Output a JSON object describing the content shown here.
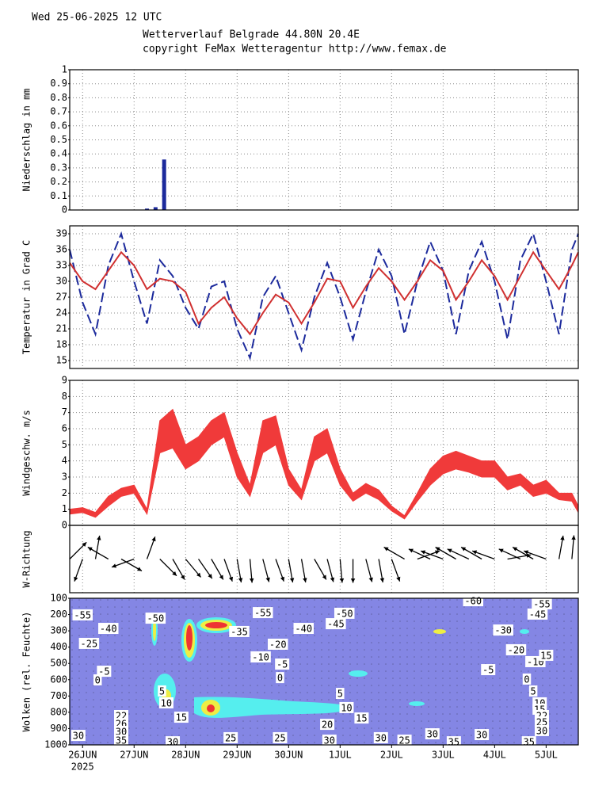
{
  "header": {
    "date": "Wed 25-06-2025 12 UTC",
    "location": "Wetterverlauf Belgrade  44.80N 20.4E",
    "copyright": "copyright FeMax Wetteragentur http://www.femax.de"
  },
  "chart_data": [
    {
      "type": "bar",
      "ylabel": "Niederschlag in mm",
      "xlim": [
        0,
        237
      ],
      "ylim": [
        0,
        1
      ],
      "yticks": [
        0,
        0.1,
        0.2,
        0.3,
        0.4,
        0.5,
        0.6,
        0.7,
        0.8,
        0.9,
        1
      ],
      "grid": true,
      "color": "#1c2a9c",
      "x": [
        36,
        40,
        44
      ],
      "values": [
        0.01,
        0.02,
        0.36
      ]
    },
    {
      "type": "line",
      "ylabel": "Temperatur in Grad C",
      "xlim": [
        0,
        237
      ],
      "ylim": [
        13.5,
        40.5
      ],
      "yticks": [
        15,
        18,
        21,
        24,
        27,
        30,
        33,
        36,
        39
      ],
      "grid": true,
      "x": [
        0,
        6,
        12,
        18,
        24,
        30,
        36,
        42,
        48,
        54,
        60,
        66,
        72,
        78,
        84,
        90,
        96,
        102,
        108,
        114,
        120,
        126,
        132,
        138,
        144,
        150,
        156,
        162,
        168,
        174,
        180,
        186,
        192,
        198,
        204,
        210,
        216,
        222,
        228,
        234,
        237
      ],
      "series": [
        {
          "color": "#1c2a9c",
          "style": "dashed",
          "values": [
            36,
            26,
            20,
            33,
            39,
            30,
            22,
            34,
            31,
            25,
            21,
            29,
            30,
            21,
            15.5,
            27,
            31,
            24,
            17,
            27,
            33.5,
            27,
            19,
            28,
            36,
            31,
            20,
            30,
            37.5,
            32,
            20,
            32,
            37.5,
            30,
            19,
            34,
            39,
            30,
            20,
            36,
            39
          ]
        },
        {
          "color": "#d03030",
          "style": "solid",
          "values": [
            33.5,
            30,
            28.5,
            32,
            35.5,
            33,
            28.5,
            30.5,
            30,
            28,
            22,
            25,
            27,
            23,
            20,
            24,
            27.5,
            26,
            22,
            26,
            30.5,
            30,
            25,
            29,
            32.5,
            30,
            26.5,
            30,
            34,
            32,
            26.5,
            30,
            34,
            31,
            26.5,
            31,
            35.5,
            32,
            28.5,
            33,
            35.5
          ]
        }
      ]
    },
    {
      "type": "band",
      "ylabel": "Windgeschw. m/s",
      "xlim": [
        0,
        237
      ],
      "ylim": [
        0,
        9
      ],
      "yticks": [
        0,
        1,
        2,
        3,
        4,
        5,
        6,
        7,
        8,
        9
      ],
      "grid": true,
      "color": "#f03a3a",
      "x": [
        0,
        6,
        12,
        18,
        24,
        30,
        36,
        42,
        48,
        54,
        60,
        66,
        72,
        78,
        84,
        90,
        96,
        102,
        108,
        114,
        120,
        126,
        132,
        138,
        144,
        150,
        156,
        162,
        168,
        174,
        180,
        186,
        192,
        198,
        204,
        210,
        216,
        222,
        228,
        234,
        237
      ],
      "lower": [
        0.7,
        0.8,
        0.5,
        1.2,
        1.8,
        2.0,
        0.7,
        4.5,
        4.8,
        3.5,
        4.0,
        5.0,
        5.5,
        3.0,
        1.8,
        4.5,
        5.0,
        2.5,
        1.6,
        4.0,
        4.5,
        2.5,
        1.5,
        2.0,
        1.6,
        0.9,
        0.4,
        1.5,
        2.5,
        3.2,
        3.5,
        3.3,
        3.0,
        3.0,
        2.2,
        2.5,
        1.8,
        2.0,
        1.6,
        1.5,
        0.8
      ],
      "upper": [
        1.0,
        1.1,
        0.8,
        1.8,
        2.3,
        2.5,
        1.0,
        6.5,
        7.2,
        5.0,
        5.5,
        6.5,
        7.0,
        4.5,
        2.5,
        6.5,
        6.8,
        3.5,
        2.2,
        5.5,
        6.0,
        3.5,
        2.0,
        2.6,
        2.2,
        1.2,
        0.6,
        2.0,
        3.5,
        4.3,
        4.6,
        4.3,
        4.0,
        4.0,
        3.0,
        3.2,
        2.5,
        2.8,
        2.0,
        2.0,
        1.2
      ]
    },
    {
      "type": "arrows",
      "ylabel": "W-Richtung",
      "xlim": [
        0,
        237
      ],
      "color": "#000000",
      "x": [
        0,
        6,
        12,
        18,
        24,
        30,
        36,
        42,
        48,
        54,
        60,
        66,
        72,
        78,
        84,
        90,
        96,
        102,
        108,
        114,
        120,
        126,
        132,
        138,
        144,
        150,
        156,
        162,
        168,
        174,
        180,
        186,
        192,
        198,
        204,
        210,
        216,
        222,
        228,
        234
      ],
      "values": [
        45,
        200,
        10,
        300,
        120,
        250,
        20,
        135,
        150,
        140,
        145,
        150,
        160,
        170,
        175,
        165,
        160,
        170,
        170,
        150,
        165,
        175,
        180,
        165,
        170,
        160,
        300,
        70,
        295,
        290,
        300,
        295,
        300,
        290,
        80,
        295,
        300,
        290,
        10,
        5
      ]
    },
    {
      "type": "contour",
      "ylabel": "Wolken (rel. Feuchte)",
      "xlim": [
        0,
        237
      ],
      "ylim": [
        100,
        1000
      ],
      "inverted": true,
      "yticks": [
        100,
        200,
        300,
        400,
        500,
        600,
        700,
        800,
        900,
        1000
      ],
      "color": "#8486e4",
      "year": "2025",
      "xticks": [
        {
          "value": 6,
          "label": "26JUN"
        },
        {
          "value": 30,
          "label": "27JUN"
        },
        {
          "value": 54,
          "label": "28JUN"
        },
        {
          "value": 78,
          "label": "29JUN"
        },
        {
          "value": 102,
          "label": "30JUN"
        },
        {
          "value": 126,
          "label": "1JUL"
        },
        {
          "value": 150,
          "label": "2JUL"
        },
        {
          "value": 174,
          "label": "3JUL"
        },
        {
          "value": 198,
          "label": "4JUL"
        },
        {
          "value": 222,
          "label": "5JUL"
        }
      ],
      "labels": {
        "x": [
          6,
          18,
          9,
          16,
          13,
          4,
          24,
          24,
          24,
          24,
          40,
          43,
          45,
          52,
          48,
          90,
          79,
          97,
          89,
          99,
          98,
          109,
          128,
          124,
          75,
          98,
          126,
          129,
          136,
          120,
          121,
          145,
          156,
          169,
          192,
          179,
          188,
          220,
          218,
          202,
          208,
          217,
          222,
          195,
          213,
          216,
          219,
          219,
          220,
          220,
          220,
          214
        ],
        "y": [
          202,
          285,
          377,
          548,
          601,
          942,
          820,
          869,
          917,
          971,
          222,
          669,
          742,
          830,
          981,
          188,
          304,
          382,
          460,
          504,
          587,
          285,
          192,
          256,
          956,
          956,
          684,
          771,
          835,
          874,
          971,
          956,
          971,
          932,
          937,
          981,
          115,
          134,
          197,
          295,
          416,
          489,
          450,
          538,
          596,
          669,
          742,
          781,
          820,
          859,
          912,
          981
        ],
        "values": [
          -55,
          -40,
          -25,
          -5,
          0,
          30,
          22,
          26,
          30,
          35,
          -50,
          5,
          10,
          15,
          30,
          -55,
          -35,
          -20,
          -10,
          -5,
          0,
          -40,
          -50,
          -45,
          25,
          25,
          5,
          10,
          15,
          20,
          30,
          30,
          25,
          30,
          30,
          35,
          -60,
          -55,
          -45,
          -30,
          -20,
          -10,
          15,
          -5,
          0,
          5,
          10,
          15,
          22,
          25,
          30,
          35
        ]
      }
    }
  ]
}
